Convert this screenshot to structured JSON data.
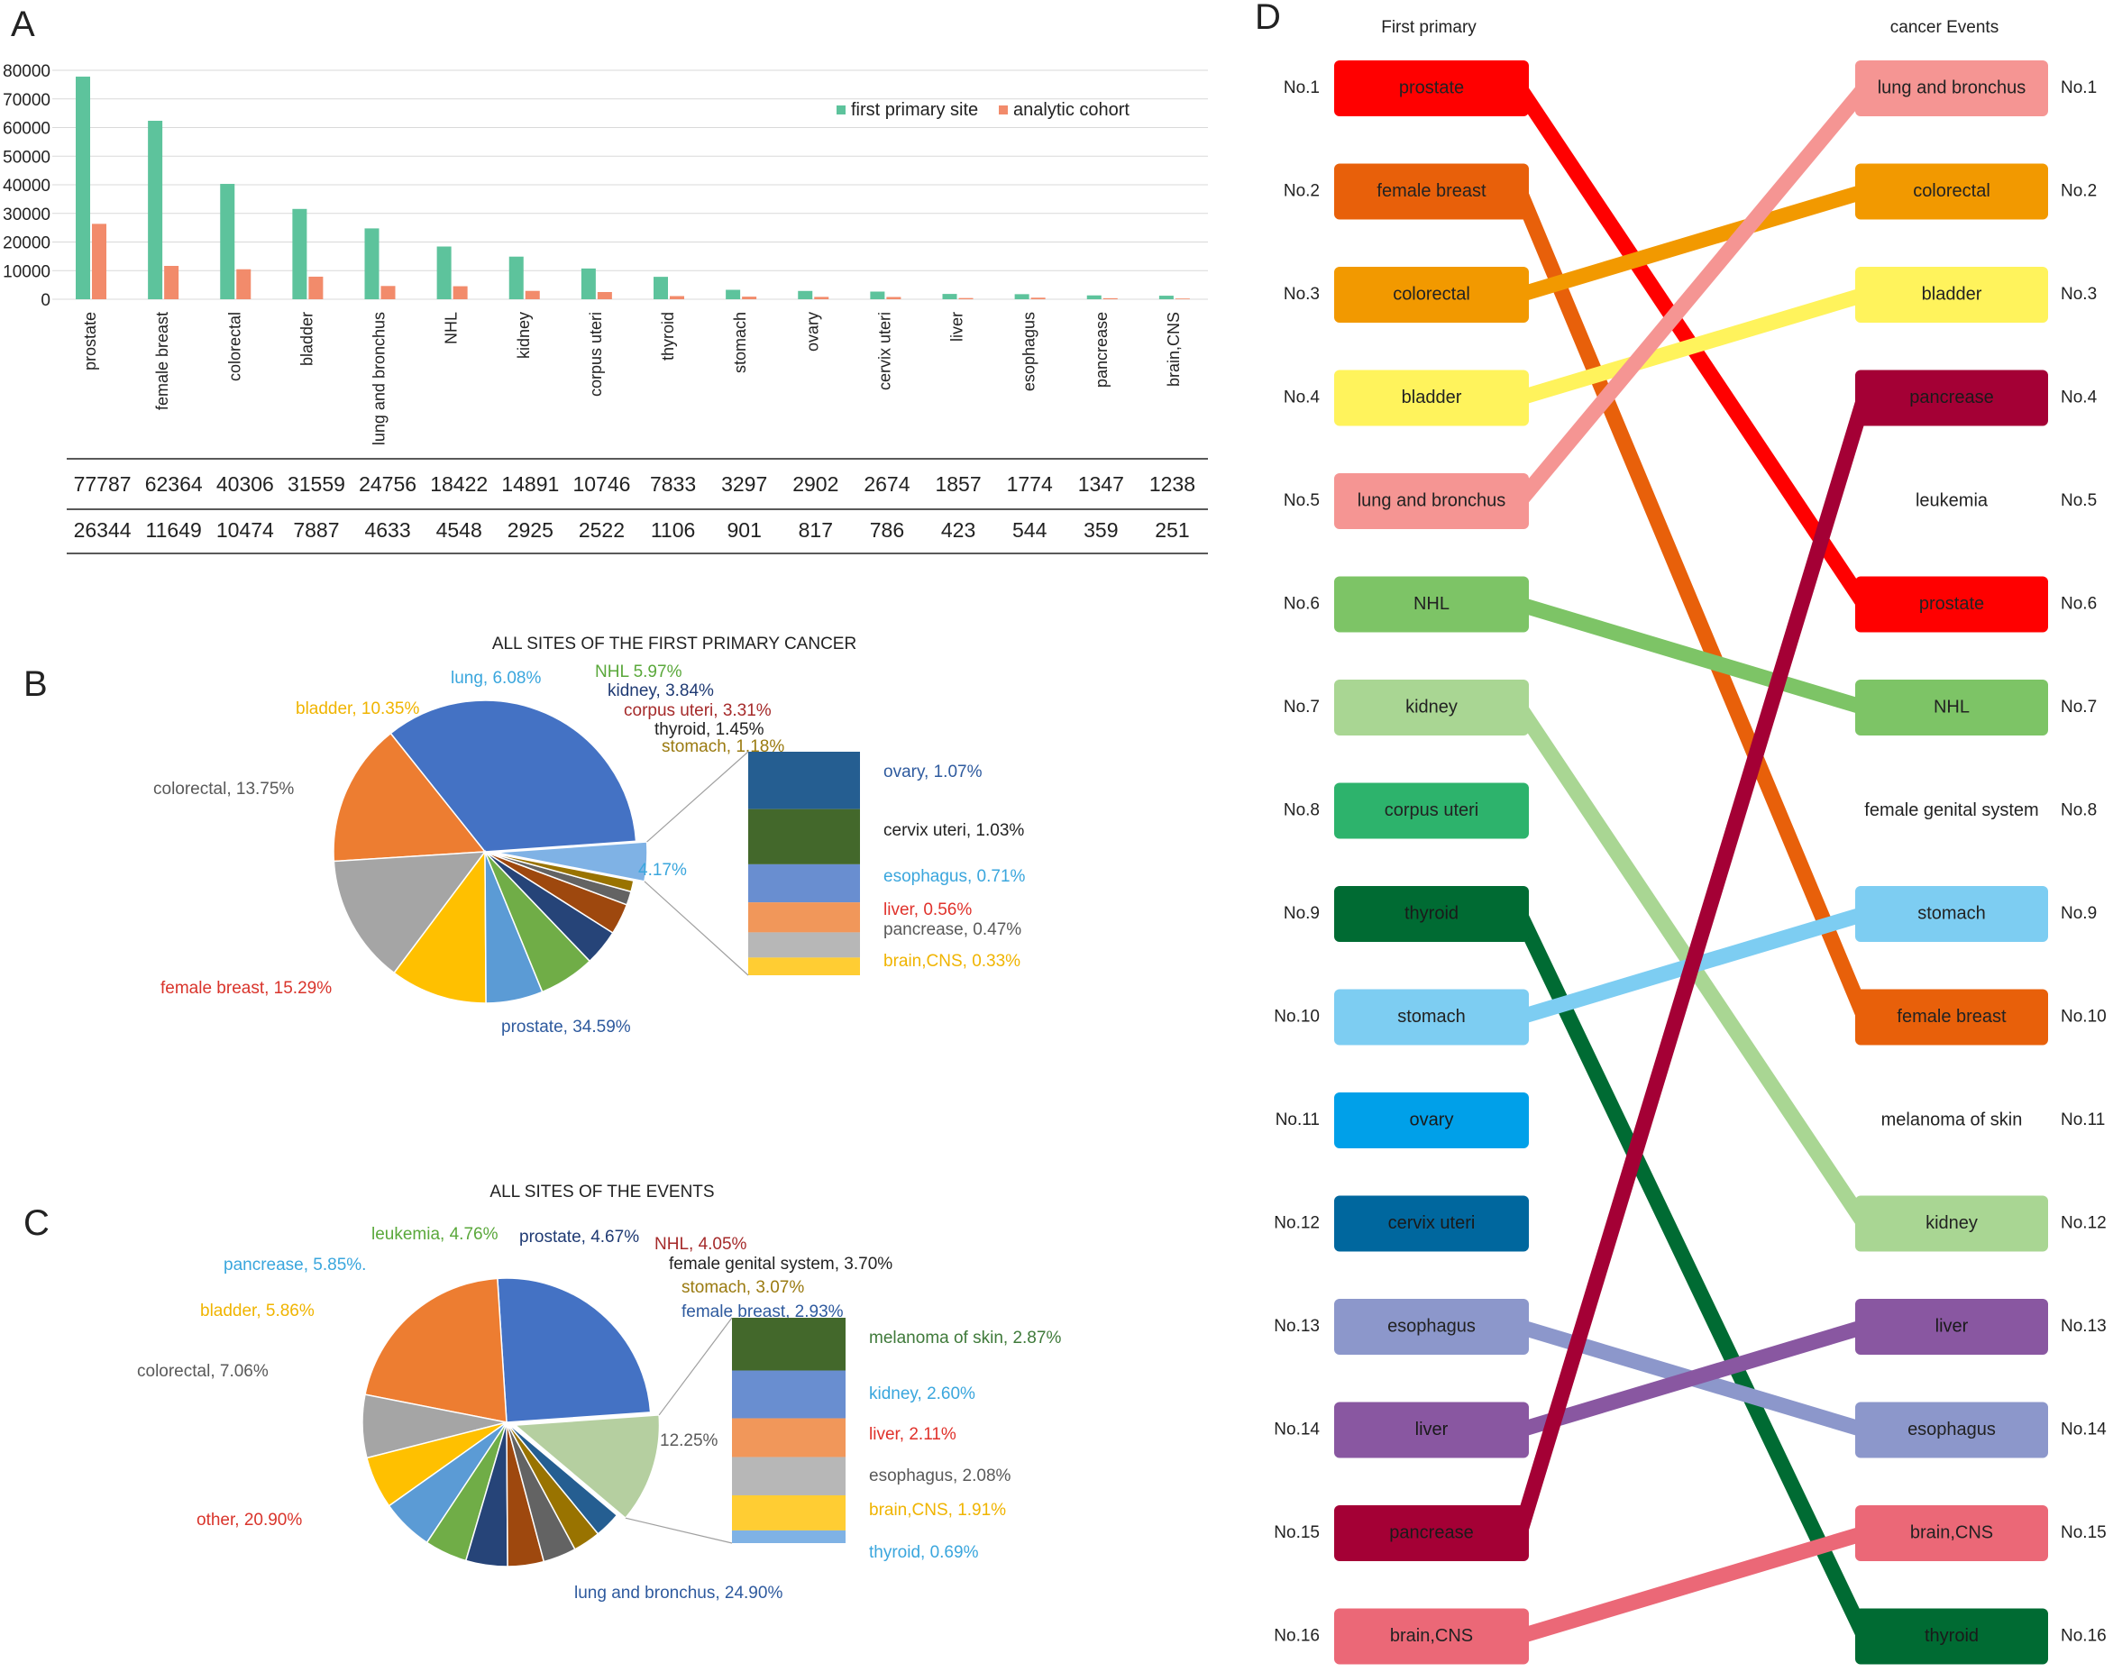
{
  "panels": {
    "a": "A",
    "b": "B",
    "c": "C",
    "d": "D"
  },
  "chart_data": [
    {
      "type": "bar",
      "panel": "A",
      "categories": [
        "prostate",
        "female breast",
        "colorectal",
        "bladder",
        "lung and bronchus",
        "NHL",
        "kidney",
        "corpus uteri",
        "thyroid",
        "stomach",
        "ovary",
        "cervix uteri",
        "liver",
        "esophagus",
        "pancrease",
        "brain,CNS"
      ],
      "series": [
        {
          "name": "first primary site",
          "color": "#5dc39c",
          "values": [
            77787,
            62364,
            40306,
            31559,
            24756,
            18422,
            14891,
            10746,
            7833,
            3297,
            2902,
            2674,
            1857,
            1774,
            1347,
            1238
          ]
        },
        {
          "name": "analytic cohort",
          "color": "#f28b6b",
          "values": [
            26344,
            11649,
            10474,
            7887,
            4633,
            4548,
            2925,
            2522,
            1106,
            901,
            817,
            786,
            423,
            544,
            359,
            251
          ]
        }
      ],
      "ylim": [
        0,
        80000
      ],
      "yticks": [
        "0",
        "10000",
        "20000",
        "30000",
        "40000",
        "50000",
        "60000",
        "70000",
        "80000"
      ],
      "grid": true,
      "legend": "top-right",
      "table_rows": [
        [
          "77787",
          "62364",
          "40306",
          "31559",
          "24756",
          "18422",
          "14891",
          "10746",
          "7833",
          "3297",
          "2902",
          "2674",
          "1857",
          "1774",
          "1347",
          "1238"
        ],
        [
          "26344",
          "11649",
          "10474",
          "7887",
          "4633",
          "4548",
          "2925",
          "2522",
          "1106",
          "901",
          "817",
          "786",
          "423",
          "544",
          "359",
          "251"
        ]
      ]
    },
    {
      "type": "pie",
      "panel": "B",
      "title": "ALL SITES OF THE FIRST PRIMARY CANCER",
      "slices": [
        {
          "label": "prostate, 34.59%",
          "value": 34.59,
          "color": "#4472c4",
          "label_color": "#2e5a9e"
        },
        {
          "label": "female breast, 15.29%",
          "value": 15.29,
          "color": "#ed7d31",
          "label_color": "#d9342b"
        },
        {
          "label": "colorectal, 13.75%",
          "value": 13.75,
          "color": "#a5a5a5",
          "label_color": "#595959"
        },
        {
          "label": "bladder, 10.35%",
          "value": 10.35,
          "color": "#ffc000",
          "label_color": "#f0b400"
        },
        {
          "label": "lung, 6.08%",
          "value": 6.08,
          "color": "#5b9bd5",
          "label_color": "#3aa6dd"
        },
        {
          "label": "NHL 5.97%",
          "value": 5.97,
          "color": "#70ad47",
          "label_color": "#5aa83b"
        },
        {
          "label": "kidney, 3.84%",
          "value": 3.84,
          "color": "#264478",
          "label_color": "#1f3a73"
        },
        {
          "label": "corpus uteri, 3.31%",
          "value": 3.31,
          "color": "#9e480e",
          "label_color": "#a52a2a"
        },
        {
          "label": "thyroid, 1.45%",
          "value": 1.45,
          "color": "#636363",
          "label_color": "#222222"
        },
        {
          "label": "stomach, 1.18%",
          "value": 1.18,
          "color": "#997300",
          "label_color": "#9a7a10"
        },
        {
          "label": "4.17%",
          "value": 4.17,
          "color": "#7fb2e5",
          "label_color": "#3aa6dd",
          "exploded": true
        }
      ],
      "breakdown": [
        {
          "label": "ovary, 1.07%",
          "value": 1.07,
          "color": "#255e91",
          "label_color": "#2e5a9e"
        },
        {
          "label": "cervix uteri, 1.03%",
          "value": 1.03,
          "color": "#43682b",
          "label_color": "#222222"
        },
        {
          "label": "esophagus, 0.71%",
          "value": 0.71,
          "color": "#698ed0",
          "label_color": "#3aa6dd"
        },
        {
          "label": "liver, 0.56%",
          "value": 0.56,
          "color": "#f1975a",
          "label_color": "#e0322b"
        },
        {
          "label": "pancrease, 0.47%",
          "value": 0.47,
          "color": "#b7b7b7",
          "label_color": "#595959"
        },
        {
          "label": "brain,CNS, 0.33%",
          "value": 0.33,
          "color": "#ffcd33",
          "label_color": "#f0b400"
        }
      ]
    },
    {
      "type": "pie",
      "panel": "C",
      "title": "ALL SITES OF THE EVENTS",
      "slices": [
        {
          "label": "lung and bronchus, 24.90%",
          "value": 24.9,
          "color": "#4472c4",
          "label_color": "#2e5a9e"
        },
        {
          "label": "other, 20.90%",
          "value": 20.9,
          "color": "#ed7d31",
          "label_color": "#d9342b"
        },
        {
          "label": "colorectal, 7.06%",
          "value": 7.06,
          "color": "#a5a5a5",
          "label_color": "#595959"
        },
        {
          "label": "bladder, 5.86%",
          "value": 5.86,
          "color": "#ffc000",
          "label_color": "#f0b400"
        },
        {
          "label": "pancrease, 5.85%.",
          "value": 5.85,
          "color": "#5b9bd5",
          "label_color": "#3aa6dd"
        },
        {
          "label": "leukemia, 4.76%",
          "value": 4.76,
          "color": "#70ad47",
          "label_color": "#5aa83b"
        },
        {
          "label": "prostate, 4.67%",
          "value": 4.67,
          "color": "#264478",
          "label_color": "#1f3a73"
        },
        {
          "label": "NHL, 4.05%",
          "value": 4.05,
          "color": "#9e480e",
          "label_color": "#a52a2a"
        },
        {
          "label": "female genital system, 3.70%",
          "value": 3.7,
          "color": "#636363",
          "label_color": "#222222"
        },
        {
          "label": "stomach, 3.07%",
          "value": 3.07,
          "color": "#997300",
          "label_color": "#9a7a10"
        },
        {
          "label": "female breast, 2.93%",
          "value": 2.93,
          "color": "#255e91",
          "label_color": "#2e5a9e"
        },
        {
          "label": "12.25%",
          "value": 12.25,
          "color": "#b5cfa0",
          "label_color": "#595959",
          "exploded": true
        }
      ],
      "breakdown": [
        {
          "label": "melanoma of skin, 2.87%",
          "value": 2.87,
          "color": "#43682b",
          "label_color": "#3f7a3a"
        },
        {
          "label": "kidney, 2.60%",
          "value": 2.6,
          "color": "#698ed0",
          "label_color": "#3aa6dd"
        },
        {
          "label": "liver, 2.11%",
          "value": 2.11,
          "color": "#f1975a",
          "label_color": "#e0322b"
        },
        {
          "label": "esophagus, 2.08%",
          "value": 2.08,
          "color": "#b7b7b7",
          "label_color": "#595959"
        },
        {
          "label": "brain,CNS, 1.91%",
          "value": 1.91,
          "color": "#ffcd33",
          "label_color": "#f0b400"
        },
        {
          "label": "thyroid, 0.69%",
          "value": 0.69,
          "color": "#7fb2e5",
          "label_color": "#3aa6dd"
        }
      ]
    },
    {
      "type": "table",
      "panel": "D",
      "left_title": "First primary",
      "right_title": "cancer Events",
      "ranks": [
        "No.1",
        "No.2",
        "No.3",
        "No.4",
        "No.5",
        "No.6",
        "No.7",
        "No.8",
        "No.9",
        "No.10",
        "No.11",
        "No.12",
        "No.13",
        "No.14",
        "No.15",
        "No.16"
      ],
      "left": [
        {
          "label": "prostate",
          "color": "#ff0000"
        },
        {
          "label": "female breast",
          "color": "#e8600a"
        },
        {
          "label": "colorectal",
          "color": "#f29900"
        },
        {
          "label": "bladder",
          "color": "#fff35c"
        },
        {
          "label": "lung and bronchus",
          "color": "#f59593"
        },
        {
          "label": "NHL",
          "color": "#7dc466"
        },
        {
          "label": "kidney",
          "color": "#a9d693"
        },
        {
          "label": "corpus uteri",
          "color": "#2db36c"
        },
        {
          "label": "thyroid",
          "color": "#006b33"
        },
        {
          "label": "stomach",
          "color": "#7dcdf2"
        },
        {
          "label": "ovary",
          "color": "#00a0e9"
        },
        {
          "label": "cervix uteri",
          "color": "#00679e"
        },
        {
          "label": "esophagus",
          "color": "#8c97cb"
        },
        {
          "label": "liver",
          "color": "#8957a1"
        },
        {
          "label": "pancrease",
          "color": "#a40035"
        },
        {
          "label": "brain,CNS",
          "color": "#eb6877"
        }
      ],
      "right": [
        {
          "label": "lung and bronchus",
          "color": "#f59593"
        },
        {
          "label": "colorectal",
          "color": "#f29900"
        },
        {
          "label": "bladder",
          "color": "#fff35c"
        },
        {
          "label": "pancrease",
          "color": "#a40035"
        },
        {
          "label": "leukemia",
          "color": ""
        },
        {
          "label": "prostate",
          "color": "#ff0000"
        },
        {
          "label": "NHL",
          "color": "#7dc466"
        },
        {
          "label": "female genital system",
          "color": ""
        },
        {
          "label": "stomach",
          "color": "#7dcdf2"
        },
        {
          "label": "female breast",
          "color": "#e8600a"
        },
        {
          "label": "melanoma of skin",
          "color": ""
        },
        {
          "label": "kidney",
          "color": "#a9d693"
        },
        {
          "label": "liver",
          "color": "#8957a1"
        },
        {
          "label": "esophagus",
          "color": "#8c97cb"
        },
        {
          "label": "brain,CNS",
          "color": "#eb6877"
        },
        {
          "label": "thyroid",
          "color": "#006b33"
        }
      ]
    }
  ]
}
